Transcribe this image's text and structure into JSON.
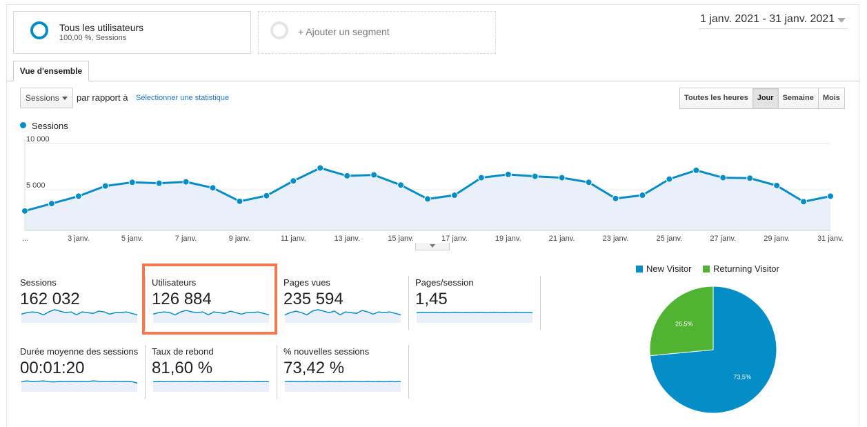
{
  "segments": {
    "primary": {
      "title": "Tous les utilisateurs",
      "subtitle": "100,00 %, Sessions"
    },
    "add": {
      "title": "+ Ajouter un segment"
    }
  },
  "date_range": "1 janv. 2021 - 31 janv. 2021",
  "tab": "Vue d'ensemble",
  "controls": {
    "metric": "Sessions",
    "versus_label": "par rapport à",
    "select_metric_link": "Sélectionner une statistique",
    "time_buttons": [
      {
        "label": "Toutes les heures",
        "active": false
      },
      {
        "label": "Jour",
        "active": true
      },
      {
        "label": "Semaine",
        "active": false
      },
      {
        "label": "Mois",
        "active": false
      }
    ]
  },
  "colors": {
    "accent": "#058dc7",
    "returning": "#50b432",
    "highlight": "#f27a4e"
  },
  "chart_data": {
    "type": "line",
    "legend": "Sessions",
    "y_ticks": [
      "10 000",
      "5 000"
    ],
    "y_tick_values": [
      10000,
      5000
    ],
    "ylim": [
      0,
      10000
    ],
    "x_tick_labels": [
      "...",
      "3 janv.",
      "5 janv.",
      "7 janv.",
      "9 janv.",
      "11 janv.",
      "13 janv.",
      "15 janv.",
      "17 janv.",
      "19 janv.",
      "21 janv.",
      "23 janv.",
      "25 janv.",
      "27 janv.",
      "29 janv.",
      "31 janv."
    ],
    "x_tick_days": [
      1,
      3,
      5,
      7,
      9,
      11,
      13,
      15,
      17,
      19,
      21,
      23,
      25,
      27,
      29,
      31
    ],
    "series": [
      {
        "name": "Sessions",
        "values": [
          2700,
          3500,
          4300,
          5400,
          5800,
          5700,
          5850,
          5200,
          3750,
          4350,
          5950,
          7350,
          6500,
          6600,
          5500,
          4000,
          4400,
          6300,
          6650,
          6450,
          6300,
          5800,
          4050,
          4400,
          6150,
          7100,
          6300,
          6250,
          5450,
          3700,
          4300
        ]
      }
    ]
  },
  "scorecards": [
    {
      "label": "Sessions",
      "value": "162 032",
      "spark": [
        0.4,
        0.5,
        0.55,
        0.5,
        0.35,
        0.55,
        0.7,
        0.6,
        0.5,
        0.55,
        0.35,
        0.55,
        0.5,
        0.45,
        0.6,
        0.55,
        0.4,
        0.5,
        0.5,
        0.55,
        0.45,
        0.35
      ]
    },
    {
      "label": "Utilisateurs",
      "value": "126 884",
      "spark": [
        0.4,
        0.5,
        0.55,
        0.5,
        0.35,
        0.55,
        0.65,
        0.55,
        0.5,
        0.55,
        0.35,
        0.55,
        0.5,
        0.45,
        0.6,
        0.5,
        0.4,
        0.5,
        0.5,
        0.55,
        0.45,
        0.35
      ]
    },
    {
      "label": "Pages vues",
      "value": "235 594",
      "spark": [
        0.35,
        0.5,
        0.6,
        0.5,
        0.35,
        0.6,
        0.7,
        0.6,
        0.5,
        0.6,
        0.35,
        0.55,
        0.5,
        0.45,
        0.65,
        0.55,
        0.4,
        0.55,
        0.5,
        0.55,
        0.45,
        0.35
      ]
    },
    {
      "label": "Pages/session",
      "value": "1,45",
      "spark": [
        0.5,
        0.52,
        0.5,
        0.52,
        0.5,
        0.51,
        0.5,
        0.52,
        0.5,
        0.51,
        0.5,
        0.52,
        0.51,
        0.5,
        0.52,
        0.5,
        0.51,
        0.5,
        0.52,
        0.5,
        0.51,
        0.5
      ]
    },
    {
      "label": "Durée moyenne des sessions",
      "value": "00:01:20",
      "spark": [
        0.5,
        0.55,
        0.5,
        0.52,
        0.55,
        0.5,
        0.48,
        0.52,
        0.5,
        0.53,
        0.5,
        0.52,
        0.5,
        0.55,
        0.52,
        0.5,
        0.5,
        0.53,
        0.5,
        0.52,
        0.5,
        0.4
      ]
    },
    {
      "label": "Taux de rebond",
      "value": "81,60 %",
      "spark": [
        0.5,
        0.51,
        0.5,
        0.5,
        0.51,
        0.5,
        0.5,
        0.51,
        0.5,
        0.5,
        0.51,
        0.5,
        0.5,
        0.51,
        0.5,
        0.5,
        0.51,
        0.5,
        0.5,
        0.51,
        0.5,
        0.5
      ]
    },
    {
      "label": "% nouvelles sessions",
      "value": "73,42 %",
      "spark": [
        0.5,
        0.52,
        0.51,
        0.5,
        0.52,
        0.5,
        0.51,
        0.5,
        0.52,
        0.5,
        0.51,
        0.5,
        0.52,
        0.51,
        0.5,
        0.52,
        0.5,
        0.51,
        0.5,
        0.52,
        0.5,
        0.51
      ]
    }
  ],
  "pie": {
    "type": "pie",
    "slices": [
      {
        "name": "New Visitor",
        "value": 73.5,
        "label": "73,5%",
        "color": "#058dc7"
      },
      {
        "name": "Returning Visitor",
        "value": 26.5,
        "label": "26,5%",
        "color": "#50b432"
      }
    ]
  }
}
